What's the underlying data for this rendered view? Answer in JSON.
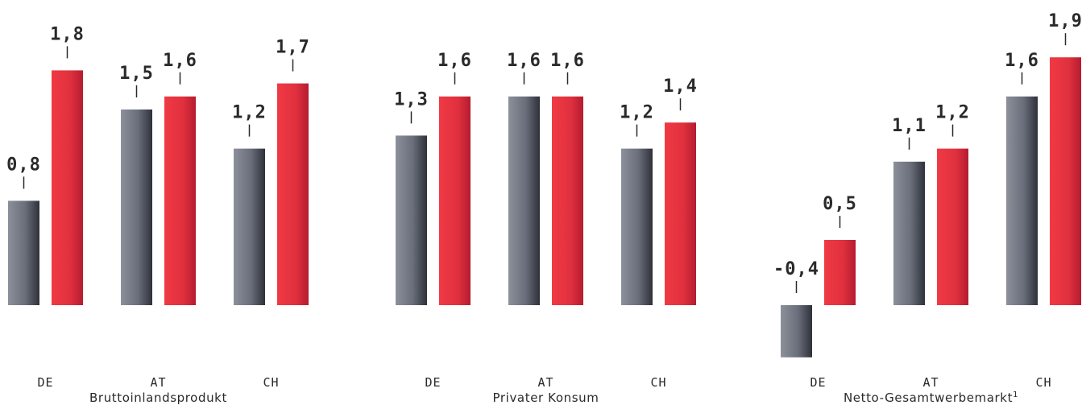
{
  "chart_data": [
    {
      "type": "bar",
      "title": "Bruttoinlandsprodukt",
      "categories": [
        "DE",
        "AT",
        "CH"
      ],
      "series": [
        {
          "values": [
            0.8,
            1.5,
            1.2
          ],
          "labels": [
            "0,8",
            "1,5",
            "1,2"
          ],
          "color": "#6e7280"
        },
        {
          "values": [
            1.8,
            1.6,
            1.7
          ],
          "labels": [
            "1,8",
            "1,6",
            "1,7"
          ],
          "color": "#e0303e"
        }
      ]
    },
    {
      "type": "bar",
      "title": "Privater Konsum",
      "categories": [
        "DE",
        "AT",
        "CH"
      ],
      "series": [
        {
          "values": [
            1.3,
            1.6,
            1.2
          ],
          "labels": [
            "1,3",
            "1,6",
            "1,2"
          ],
          "color": "#6e7280"
        },
        {
          "values": [
            1.6,
            1.6,
            1.4
          ],
          "labels": [
            "1,6",
            "1,6",
            "1,4"
          ],
          "color": "#e0303e"
        }
      ]
    },
    {
      "type": "bar",
      "title": "Netto-Gesamtwerbemarkt",
      "title_footnote": "1",
      "categories": [
        "DE",
        "AT",
        "CH"
      ],
      "series": [
        {
          "values": [
            -0.4,
            1.1,
            1.6
          ],
          "labels": [
            "-0,4",
            "1,1",
            "1,6"
          ],
          "color": "#6e7280"
        },
        {
          "values": [
            0.5,
            1.2,
            1.9
          ],
          "labels": [
            "0,5",
            "1,2",
            "1,9"
          ],
          "color": "#e0303e"
        }
      ]
    }
  ]
}
